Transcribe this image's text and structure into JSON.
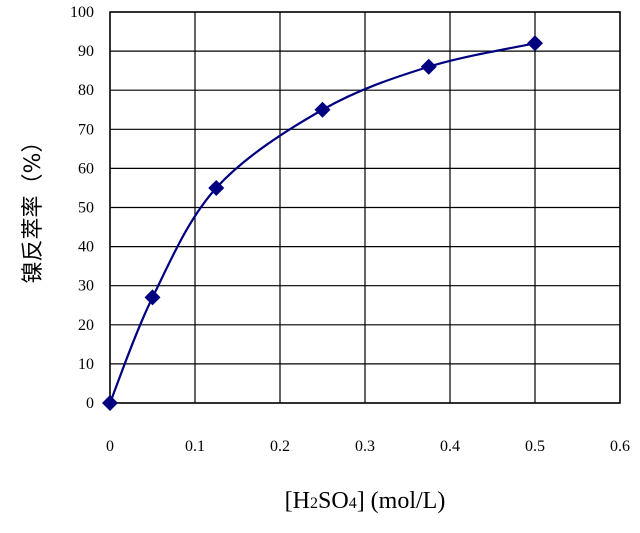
{
  "chart_data": {
    "type": "line",
    "x": [
      0,
      0.05,
      0.125,
      0.25,
      0.375,
      0.5
    ],
    "series": [
      {
        "values": [
          0,
          27,
          55,
          75,
          86,
          92
        ],
        "color": "#000080"
      }
    ],
    "xlim": [
      0,
      0.6
    ],
    "ylim": [
      0,
      100
    ],
    "x_ticks": [
      "0",
      "0.1",
      "0.2",
      "0.3",
      "0.4",
      "0.5",
      "0.6"
    ],
    "y_ticks": [
      "0",
      "10",
      "20",
      "30",
      "40",
      "50",
      "60",
      "70",
      "80",
      "90",
      "100"
    ],
    "xlabel": {
      "open": "[H",
      "sub1": "2",
      "mid": "SO",
      "sub2": "4",
      "close": "] (mol/L)"
    },
    "ylabel": "镍反萃率（%）",
    "grid": true,
    "marker": "diamond",
    "line_style": "smooth"
  }
}
